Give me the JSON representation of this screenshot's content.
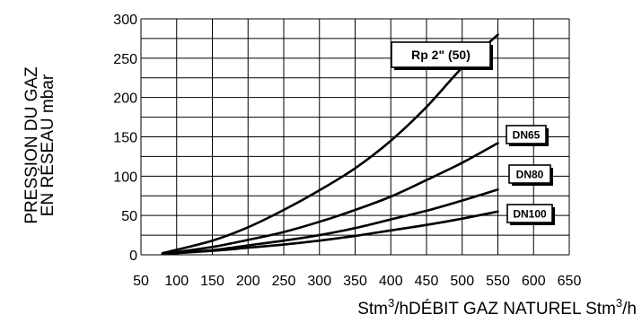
{
  "chart_data": {
    "type": "line",
    "ylabel_line1": "PRESSION DU GAZ",
    "ylabel_line2": "EN RÉSEAU mbar",
    "xlabel": {
      "unit_left": "Stm",
      "sup_left": "3",
      "mid": "/hDÉBIT GAZ NATUREL Stm",
      "sup_right": "3",
      "unit_right": "/h"
    },
    "xlim": [
      50,
      650
    ],
    "ylim": [
      0,
      300
    ],
    "x_ticks": [
      "50",
      "100",
      "150",
      "200",
      "250",
      "300",
      "350",
      "400",
      "450",
      "500",
      "550",
      "600",
      "650"
    ],
    "y_ticks": [
      "0",
      "50",
      "100",
      "150",
      "200",
      "250",
      "300"
    ],
    "grid": true,
    "series": [
      {
        "name": "Rp 2\" (50)",
        "x": [
          80,
          150,
          200,
          250,
          300,
          350,
          400,
          450,
          500,
          550
        ],
        "y": [
          2,
          18,
          35,
          57,
          82,
          110,
          145,
          188,
          238,
          280
        ]
      },
      {
        "name": "DN65",
        "x": [
          80,
          150,
          200,
          250,
          300,
          350,
          400,
          450,
          500,
          550
        ],
        "y": [
          1,
          10,
          19,
          29,
          42,
          57,
          74,
          95,
          117,
          142
        ]
      },
      {
        "name": "DN80",
        "x": [
          80,
          150,
          200,
          250,
          300,
          350,
          400,
          450,
          500,
          550
        ],
        "y": [
          1,
          6,
          12,
          18,
          25,
          34,
          45,
          56,
          69,
          83
        ]
      },
      {
        "name": "DN100",
        "x": [
          80,
          150,
          200,
          250,
          300,
          350,
          400,
          450,
          500,
          550
        ],
        "y": [
          1,
          5,
          9,
          13,
          18,
          24,
          31,
          38,
          46,
          55
        ]
      }
    ]
  }
}
